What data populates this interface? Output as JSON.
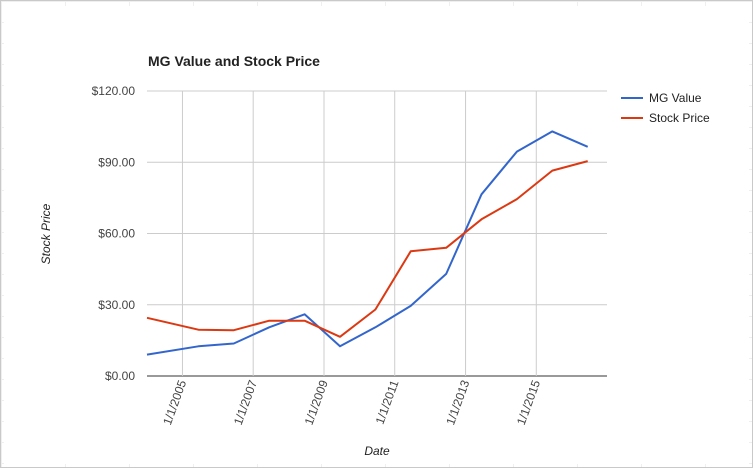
{
  "chart_data": {
    "type": "line",
    "title": "MG Value and Stock Price",
    "xlabel": "Date",
    "ylabel": "Stock Price",
    "x_ticks": [
      "1/1/2005",
      "1/1/2007",
      "1/1/2009",
      "1/1/2011",
      "1/1/2013",
      "1/1/2015"
    ],
    "y_ticks": [
      "$0.00",
      "$30.00",
      "$60.00",
      "$90.00",
      "$120.00"
    ],
    "ylim": [
      0,
      120
    ],
    "xlim": [
      "2004-01-01",
      "2016-12-31"
    ],
    "grid": true,
    "legend_position": "right",
    "x": [
      "2004-01-01",
      "2005-06-15",
      "2006-06-15",
      "2007-06-15",
      "2008-06-15",
      "2009-06-15",
      "2010-06-15",
      "2011-06-15",
      "2012-06-15",
      "2013-06-15",
      "2014-06-15",
      "2015-06-15",
      "2016-06-15"
    ],
    "series": [
      {
        "name": "MG Value",
        "color": "#3366cc",
        "values": [
          9.0,
          12.5,
          13.7,
          20.5,
          26.0,
          12.5,
          20.5,
          29.5,
          43.0,
          76.5,
          94.5,
          103.0,
          96.5
        ]
      },
      {
        "name": "Stock Price",
        "color": "#dc3912",
        "values": [
          24.5,
          19.5,
          19.3,
          23.3,
          23.3,
          16.5,
          28.0,
          52.5,
          54.0,
          66.0,
          74.5,
          86.5,
          90.5
        ]
      }
    ]
  }
}
